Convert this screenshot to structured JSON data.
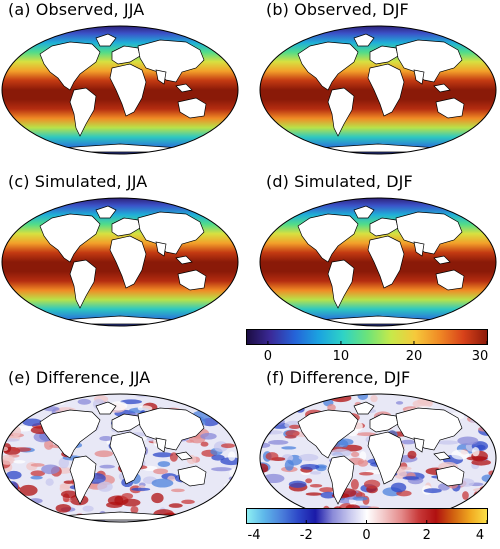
{
  "panels": {
    "a": {
      "title": "(a)  Observed, JJA",
      "kind": "sst"
    },
    "b": {
      "title": "(b)  Observed, DJF",
      "kind": "sst"
    },
    "c": {
      "title": "(c)  Simulated, JJA",
      "kind": "sst"
    },
    "d": {
      "title": "(d)  Simulated, DJF",
      "kind": "sst"
    },
    "e": {
      "title": "(e)  Difference, JJA",
      "kind": "diff"
    },
    "f": {
      "title": "(f)  Difference, DJF",
      "kind": "diff"
    }
  },
  "colorbar_sst": {
    "min": -3,
    "max": 30,
    "ticks": [
      "0",
      "10",
      "20",
      "30"
    ],
    "tick_values": [
      0,
      10,
      20,
      30
    ],
    "colormap": [
      "#1b0c41",
      "#3b2a98",
      "#2563d8",
      "#1ba3e0",
      "#2ed3c6",
      "#6be37a",
      "#c7e94a",
      "#f6c93b",
      "#f08a25",
      "#d8421a",
      "#8c1a0a"
    ]
  },
  "colorbar_diff": {
    "min": -4,
    "max": 4,
    "ticks": [
      "-4",
      "-2",
      "0",
      "2",
      "4"
    ],
    "tick_values": [
      -4,
      -2,
      0,
      2,
      4
    ],
    "colormap": [
      "#8ff0f2",
      "#5fb8ea",
      "#4c82dc",
      "#2d48c8",
      "#1a1aa8",
      "#8a8ad8",
      "#c8c8ee",
      "#ffffff",
      "#f2c6c6",
      "#e48a8a",
      "#c83a3a",
      "#b01010",
      "#d06010",
      "#f0a820",
      "#fbe24a"
    ]
  },
  "colors": {
    "land": "#ffffff",
    "coast": "#000000"
  }
}
